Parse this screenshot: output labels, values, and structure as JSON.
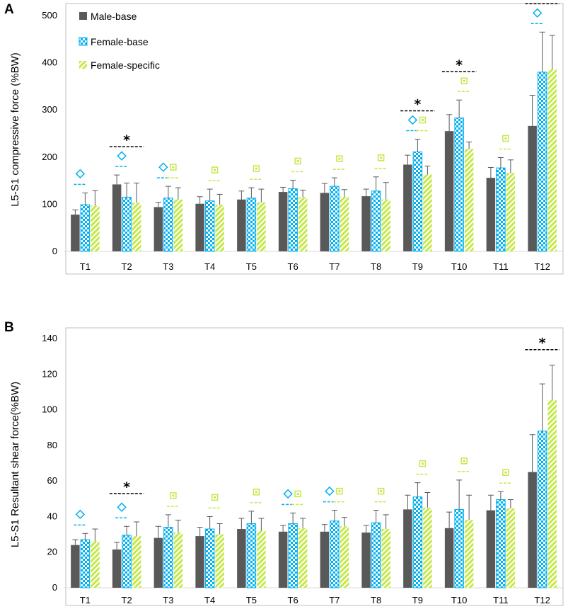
{
  "colors": {
    "male": "#595959",
    "female_base_square": "#00b0f0",
    "female_specific_line": "#c5e84a",
    "frame": "#bfbfbf",
    "error_bar": "#595959",
    "sig_male": "#000000",
    "sig_base": "#00b0f0",
    "sig_specific": "#c5e84a"
  },
  "chart_data": [
    {
      "type": "bar",
      "panel_label": "A",
      "title": "",
      "xlabel": "",
      "ylabel": "L5-S1 compressive force (%BW)",
      "ylim": [
        0,
        500
      ],
      "yticks": [
        0,
        100,
        200,
        300,
        400,
        500
      ],
      "legend_position": "top-left",
      "categories": [
        "T1",
        "T2",
        "T3",
        "T4",
        "T5",
        "T6",
        "T7",
        "T8",
        "T9",
        "T10",
        "T11",
        "T12"
      ],
      "series": [
        {
          "name": "Male-base",
          "pattern": "solid",
          "values": [
            78,
            142,
            94,
            101,
            110,
            126,
            124,
            117,
            184,
            255,
            156,
            266
          ],
          "errors": [
            10,
            20,
            10,
            15,
            18,
            10,
            20,
            15,
            20,
            35,
            22,
            65
          ]
        },
        {
          "name": "Female-base",
          "pattern": "checker",
          "values": [
            99,
            115,
            113,
            107,
            113,
            133,
            138,
            128,
            211,
            283,
            177,
            380
          ],
          "errors": [
            25,
            30,
            25,
            25,
            22,
            18,
            18,
            30,
            27,
            38,
            22,
            85
          ]
        },
        {
          "name": "Female-specific",
          "pattern": "diagonal",
          "values": [
            97,
            103,
            110,
            99,
            104,
            115,
            116,
            110,
            163,
            217,
            166,
            386
          ],
          "errors": [
            32,
            42,
            25,
            22,
            28,
            15,
            15,
            36,
            18,
            15,
            28,
            72
          ]
        }
      ],
      "annotations": {
        "star_categories": [
          "T2",
          "T9",
          "T10",
          "T12"
        ],
        "diamond_categories": [
          "T1",
          "T2",
          "T3",
          "T9",
          "T12"
        ],
        "square_categories": [
          "T3",
          "T4",
          "T5",
          "T6",
          "T7",
          "T8",
          "T9",
          "T10",
          "T11"
        ]
      }
    },
    {
      "type": "bar",
      "panel_label": "B",
      "title": "",
      "xlabel": "",
      "ylabel": "L5-S1 Resultant shear force(%BW)",
      "ylim": [
        0,
        140
      ],
      "yticks": [
        0,
        20,
        40,
        60,
        80,
        100,
        120,
        140
      ],
      "categories": [
        "T1",
        "T2",
        "T3",
        "T4",
        "T5",
        "T6",
        "T7",
        "T8",
        "T9",
        "T10",
        "T11",
        "T12"
      ],
      "series": [
        {
          "name": "Male-base",
          "pattern": "solid",
          "values": [
            24,
            21.5,
            28,
            29,
            33,
            31.5,
            31.5,
            31,
            44,
            33.5,
            43.5,
            65
          ],
          "errors": [
            3,
            4,
            6.5,
            5,
            6,
            3.5,
            4,
            4,
            8,
            9,
            8.5,
            21
          ]
        },
        {
          "name": "Female-base",
          "pattern": "checker",
          "values": [
            27,
            29.5,
            34,
            33,
            36,
            36,
            37.5,
            36.5,
            51,
            44,
            49.5,
            88
          ],
          "errors": [
            3.5,
            5,
            7,
            7,
            7,
            6,
            6,
            7,
            8,
            16.5,
            4.5,
            26.5
          ]
        },
        {
          "name": "Female-specific",
          "pattern": "diagonal",
          "values": [
            26,
            29,
            31,
            30,
            32,
            33.5,
            34.5,
            33,
            45,
            38,
            44.5,
            105.5
          ],
          "errors": [
            7,
            8,
            7,
            6,
            7,
            5.5,
            5,
            8,
            8.5,
            14,
            5,
            19.5
          ]
        }
      ],
      "annotations": {
        "star_categories": [
          "T2",
          "T12"
        ],
        "diamond_categories": [
          "T1",
          "T2",
          "T6",
          "T7"
        ],
        "square_categories": [
          "T3",
          "T4",
          "T5",
          "T6",
          "T7",
          "T8",
          "T9",
          "T10",
          "T11"
        ]
      }
    }
  ]
}
